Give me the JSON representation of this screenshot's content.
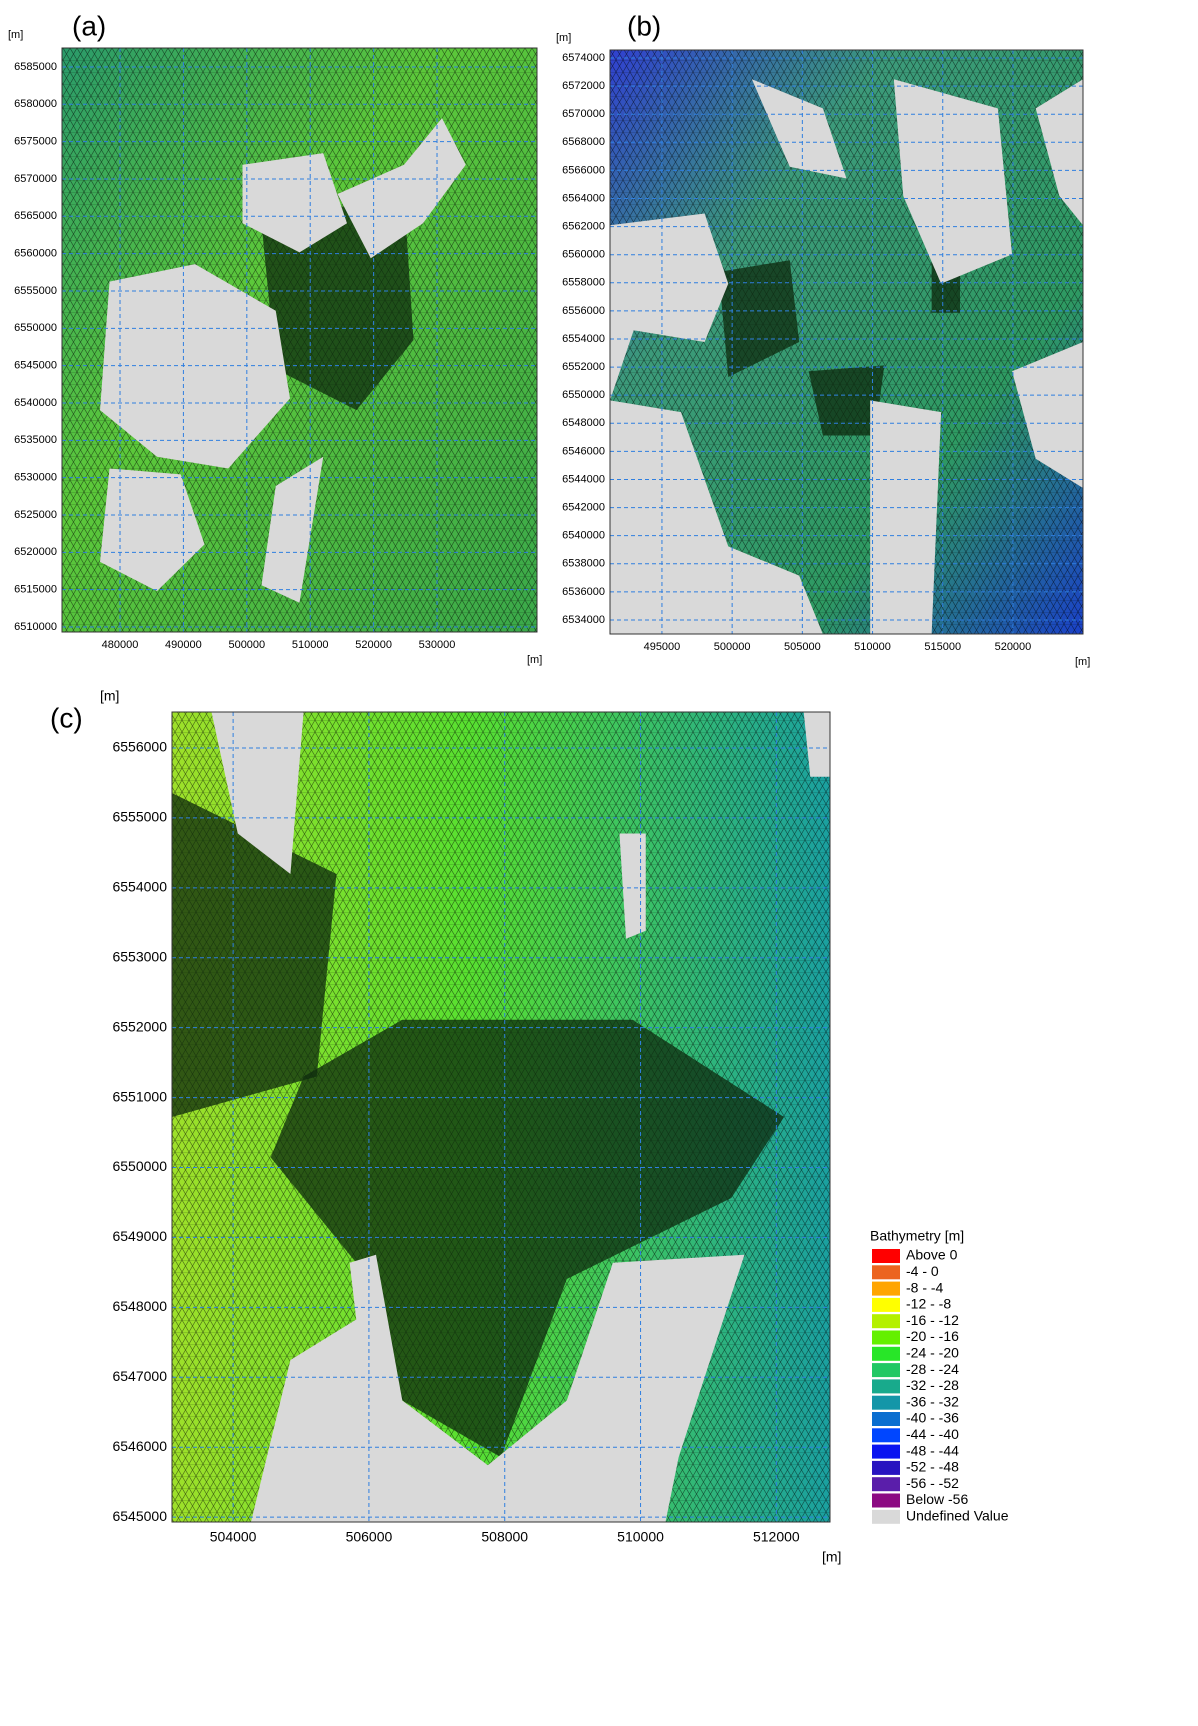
{
  "panels": [
    {
      "label": "(a)",
      "unit_y": "[m]",
      "unit_x": "[m]",
      "xlim": [
        470850,
        545770
      ],
      "ylim": [
        6509330,
        6587540
      ],
      "xticks": [
        480000,
        490000,
        500000,
        510000,
        520000,
        530000
      ],
      "yticks": [
        6510000,
        6515000,
        6520000,
        6525000,
        6530000,
        6535000,
        6540000,
        6545000,
        6550000,
        6555000,
        6560000,
        6565000,
        6570000,
        6575000,
        6580000,
        6585000
      ]
    },
    {
      "label": "(b)",
      "unit_y": "[m]",
      "unit_x": "[m]",
      "xlim": [
        491300,
        524990
      ],
      "ylim": [
        6533000,
        6574570
      ],
      "xticks": [
        495000,
        500000,
        505000,
        510000,
        515000,
        520000
      ],
      "yticks": [
        6534000,
        6536000,
        6538000,
        6540000,
        6542000,
        6544000,
        6546000,
        6548000,
        6550000,
        6552000,
        6554000,
        6556000,
        6558000,
        6560000,
        6562000,
        6564000,
        6566000,
        6568000,
        6570000,
        6572000,
        6574000
      ]
    },
    {
      "label": "(c)",
      "unit_y": "[m]",
      "unit_x": "[m]",
      "xlim": [
        503100,
        512790
      ],
      "ylim": [
        6544930,
        6556515
      ],
      "xticks": [
        504000,
        506000,
        508000,
        510000,
        512000
      ],
      "yticks": [
        6545000,
        6546000,
        6547000,
        6548000,
        6549000,
        6550000,
        6551000,
        6552000,
        6553000,
        6554000,
        6555000,
        6556000
      ]
    }
  ],
  "legend": {
    "title": "Bathymetry [m]",
    "entries": [
      {
        "label": "Above 0",
        "color": "#ff0000"
      },
      {
        "label": "-4 - 0",
        "color": "#ec6420"
      },
      {
        "label": "-8 - -4",
        "color": "#ffa500"
      },
      {
        "label": "-12 - -8",
        "color": "#ffff00"
      },
      {
        "label": "-16 - -12",
        "color": "#b4f000"
      },
      {
        "label": "-20 - -16",
        "color": "#64f000"
      },
      {
        "label": "-24 - -20",
        "color": "#28e628"
      },
      {
        "label": "-28 - -24",
        "color": "#20c864"
      },
      {
        "label": "-32 - -28",
        "color": "#18aa8c"
      },
      {
        "label": "-36 - -32",
        "color": "#1496a8"
      },
      {
        "label": "-40 - -36",
        "color": "#0a6ed0"
      },
      {
        "label": "-44 - -40",
        "color": "#0046ff"
      },
      {
        "label": "-48 - -44",
        "color": "#0a14f0"
      },
      {
        "label": "-52 - -48",
        "color": "#2814c0"
      },
      {
        "label": "-56 - -52",
        "color": "#5a1eaa"
      },
      {
        "label": "Below -56",
        "color": "#8c0a82"
      },
      {
        "label": "Undefined Value",
        "color": "#d9d9d9"
      }
    ]
  }
}
